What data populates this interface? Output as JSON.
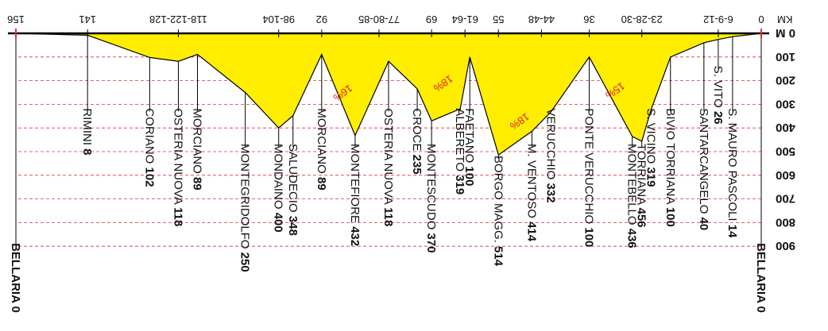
{
  "chart_data": {
    "type": "area",
    "title": "",
    "xlabel": "KM",
    "ylabel": "M",
    "orientation": "rotated-180",
    "xlim": [
      0,
      156
    ],
    "ylim": [
      0,
      900
    ],
    "grid": true,
    "km_ticks": [
      {
        "km": 0,
        "label": "0"
      },
      {
        "km": 9,
        "label": "6-9-12"
      },
      {
        "km": 25,
        "label": "23-28-30"
      },
      {
        "km": 36,
        "label": "36"
      },
      {
        "km": 46,
        "label": "44-48"
      },
      {
        "km": 55,
        "label": "55"
      },
      {
        "km": 62,
        "label": "61-64"
      },
      {
        "km": 69,
        "label": "69"
      },
      {
        "km": 80,
        "label": "77-80-85"
      },
      {
        "km": 92,
        "label": "92"
      },
      {
        "km": 101,
        "label": "98-104"
      },
      {
        "km": 122,
        "label": "118-122-128"
      },
      {
        "km": 141,
        "label": "141"
      },
      {
        "km": 156,
        "label": "156"
      }
    ],
    "altitude_ticks": [
      {
        "value": 0,
        "label": "0 M"
      },
      {
        "value": 100,
        "label": "100"
      },
      {
        "value": 200,
        "label": "200"
      },
      {
        "value": 300,
        "label": "300"
      },
      {
        "value": 400,
        "label": "400"
      },
      {
        "value": 500,
        "label": "500"
      },
      {
        "value": 600,
        "label": "600"
      },
      {
        "value": 700,
        "label": "700"
      },
      {
        "value": 800,
        "label": "800"
      },
      {
        "value": 900,
        "label": "900"
      }
    ],
    "profile": [
      {
        "km": 0,
        "alt": 0
      },
      {
        "km": 6,
        "alt": 14
      },
      {
        "km": 9,
        "alt": 26
      },
      {
        "km": 12,
        "alt": 40
      },
      {
        "km": 19,
        "alt": 100
      },
      {
        "km": 23,
        "alt": 319
      },
      {
        "km": 25,
        "alt": 456
      },
      {
        "km": 27,
        "alt": 436
      },
      {
        "km": 36,
        "alt": 100
      },
      {
        "km": 44,
        "alt": 332
      },
      {
        "km": 48,
        "alt": 414
      },
      {
        "km": 55,
        "alt": 514
      },
      {
        "km": 61,
        "alt": 100
      },
      {
        "km": 63,
        "alt": 319
      },
      {
        "km": 69,
        "alt": 370
      },
      {
        "km": 72,
        "alt": 235
      },
      {
        "km": 78,
        "alt": 118
      },
      {
        "km": 85,
        "alt": 432
      },
      {
        "km": 92,
        "alt": 89
      },
      {
        "km": 98,
        "alt": 348
      },
      {
        "km": 101,
        "alt": 400
      },
      {
        "km": 108,
        "alt": 250
      },
      {
        "km": 118,
        "alt": 89
      },
      {
        "km": 122,
        "alt": 118
      },
      {
        "km": 128,
        "alt": 102
      },
      {
        "km": 141,
        "alt": 8
      },
      {
        "km": 156,
        "alt": 0
      }
    ],
    "places": [
      {
        "name": "BELLARIA",
        "alt": "0",
        "km": 0,
        "bold": true,
        "line_to": 900
      },
      {
        "name": "S. MAURO PASCOLI",
        "alt": "14",
        "km": 6,
        "line_to": 330
      },
      {
        "name": "S. VITO",
        "alt": "26",
        "km": 9,
        "line_to": 150
      },
      {
        "name": "SANTARCANGELO",
        "alt": "40",
        "km": 12,
        "line_to": 330
      },
      {
        "name": "BIVIO TORRIANA",
        "alt": "100",
        "km": 19,
        "line_to": 330
      },
      {
        "name": "S. VICINO",
        "alt": "319",
        "km": 23,
        "line_to": 330
      },
      {
        "name": "TORRIANA",
        "alt": "456",
        "km": 25,
        "line_to": 480
      },
      {
        "name": "MONTEBELLO",
        "alt": "436",
        "km": 27,
        "line_to": 480
      },
      {
        "name": "PONTE VERUCCHIO",
        "alt": "100",
        "km": 36,
        "line_to": 330
      },
      {
        "name": "VERUCCHIO",
        "alt": "332",
        "km": 44,
        "line_to": 330
      },
      {
        "name": "M. VENTOSO",
        "alt": "414",
        "km": 48,
        "line_to": 480
      },
      {
        "name": "BORGO MAGG.",
        "alt": "514",
        "km": 55,
        "line_to": 530
      },
      {
        "name": "FAETANO",
        "alt": "100",
        "km": 61,
        "line_to": 330
      },
      {
        "name": "ALBERETO",
        "alt": "319",
        "km": 63,
        "line_to": 330
      },
      {
        "name": "MONTESCUDO",
        "alt": "370",
        "km": 69,
        "line_to": 480
      },
      {
        "name": "CROCE",
        "alt": "235",
        "km": 72,
        "line_to": 330
      },
      {
        "name": "OSTERIA NUOVA",
        "alt": "118",
        "km": 78,
        "line_to": 330
      },
      {
        "name": "MONTEFIORE",
        "alt": "432",
        "km": 85,
        "line_to": 480
      },
      {
        "name": "MORCIANO",
        "alt": "89",
        "km": 92,
        "line_to": 330
      },
      {
        "name": "SALUDECIO",
        "alt": "348",
        "km": 98,
        "line_to": 480
      },
      {
        "name": "MONDAINO",
        "alt": "400",
        "km": 101,
        "line_to": 480
      },
      {
        "name": "MONTEGRIDOLFO",
        "alt": "250",
        "km": 108,
        "line_to": 480
      },
      {
        "name": "MORCIANO",
        "alt": "89",
        "km": 118,
        "line_to": 330
      },
      {
        "name": "OSTERIA NUOVA",
        "alt": "118",
        "km": 122,
        "line_to": 330
      },
      {
        "name": "CORIANO",
        "alt": "102",
        "km": 128,
        "line_to": 330
      },
      {
        "name": "RIMINI",
        "alt": "8",
        "km": 141,
        "line_to": 330
      },
      {
        "name": "BELLARIA",
        "alt": "0",
        "km": 156,
        "bold": true,
        "line_to": 900
      }
    ],
    "grades": [
      {
        "label": "15%",
        "km": 31,
        "alt": 230
      },
      {
        "label": "18%",
        "km": 51,
        "alt": 360
      },
      {
        "label": "18%",
        "km": 67,
        "alt": 200
      },
      {
        "label": "16%",
        "km": 88,
        "alt": 240
      }
    ],
    "colors": {
      "fill": "#ffee00",
      "line": "#000000",
      "grid": "#e03030",
      "grade": "#e02020",
      "baseline": "#000000"
    }
  }
}
